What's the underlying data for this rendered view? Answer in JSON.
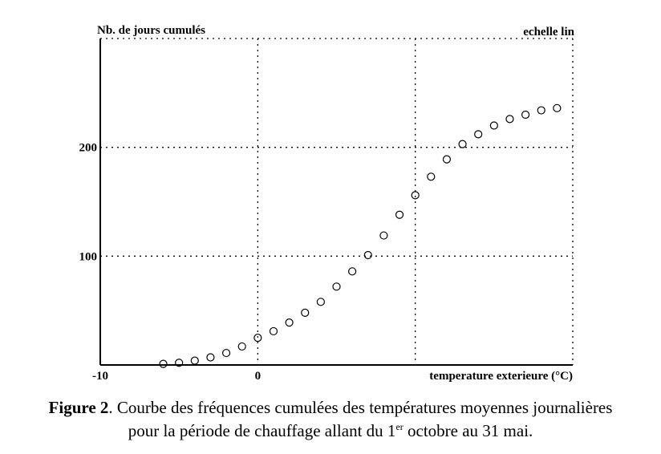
{
  "chart_data": {
    "type": "scatter",
    "title": "",
    "ylabel": "Nb. de jours cumulés",
    "xlabel": "temperature exterieure (°C)",
    "corner_label": "echelle lin",
    "xlim": [
      -10,
      20
    ],
    "ylim": [
      0,
      300
    ],
    "xticks": [
      {
        "value": -10,
        "label": "-10"
      },
      {
        "value": 0,
        "label": "0"
      }
    ],
    "yticks": [
      {
        "value": 100,
        "label": "100"
      },
      {
        "value": 200,
        "label": "200"
      }
    ],
    "grid": true,
    "marker": "circle-open",
    "points": [
      {
        "x": -6,
        "y": 1
      },
      {
        "x": -5,
        "y": 2
      },
      {
        "x": -4,
        "y": 4
      },
      {
        "x": -3,
        "y": 7
      },
      {
        "x": -2,
        "y": 11
      },
      {
        "x": -1,
        "y": 17
      },
      {
        "x": 0,
        "y": 25
      },
      {
        "x": 1,
        "y": 31
      },
      {
        "x": 2,
        "y": 39
      },
      {
        "x": 3,
        "y": 48
      },
      {
        "x": 4,
        "y": 58
      },
      {
        "x": 5,
        "y": 72
      },
      {
        "x": 6,
        "y": 86
      },
      {
        "x": 7,
        "y": 101
      },
      {
        "x": 8,
        "y": 119
      },
      {
        "x": 9,
        "y": 138
      },
      {
        "x": 10,
        "y": 156
      },
      {
        "x": 11,
        "y": 173
      },
      {
        "x": 12,
        "y": 189
      },
      {
        "x": 13,
        "y": 203
      },
      {
        "x": 14,
        "y": 212
      },
      {
        "x": 15,
        "y": 220
      },
      {
        "x": 16,
        "y": 226
      },
      {
        "x": 17,
        "y": 230
      },
      {
        "x": 18,
        "y": 234
      },
      {
        "x": 19,
        "y": 236
      }
    ]
  },
  "caption": {
    "label": "Figure 2",
    "line1": ". Courbe des fréquences cumulées des températures moyennes journalières",
    "line2_before": "pour la période de chauffage allant du 1",
    "line2_sup": "er",
    "line2_after": " octobre au 31 mai."
  }
}
